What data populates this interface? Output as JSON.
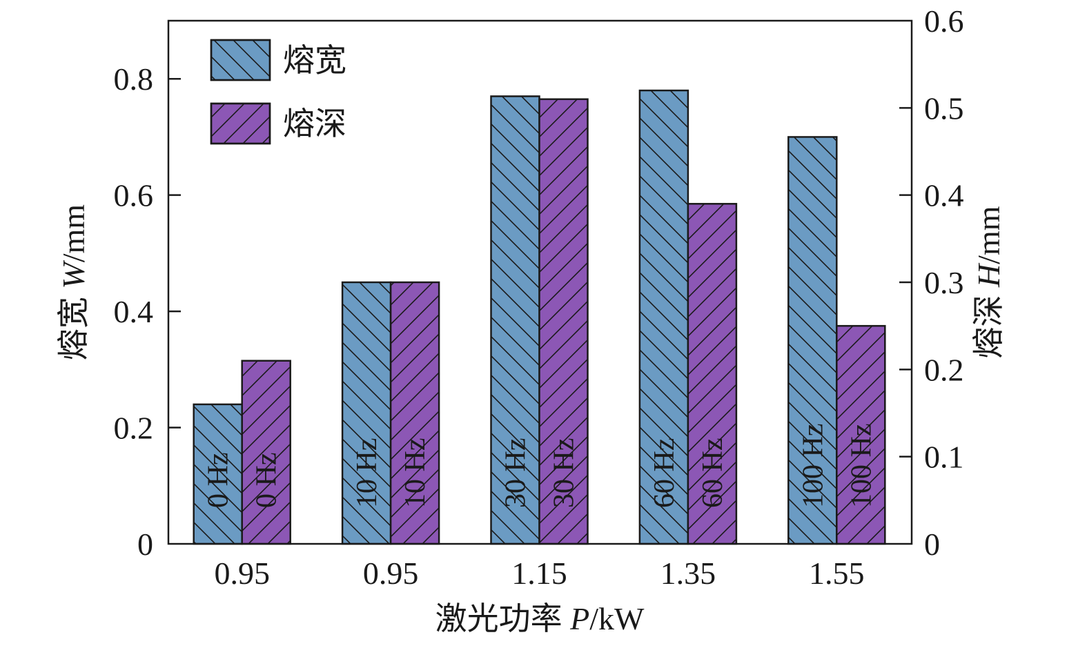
{
  "chart_data": {
    "type": "bar",
    "xlabel_prefix": "激光功率 ",
    "xlabel_var": "P",
    "xlabel_unit": "/kW",
    "ylabel_prefix": "熔宽 ",
    "ylabel_var": "W",
    "ylabel_unit": "/mm",
    "y2label_prefix": "熔深 ",
    "y2label_var": "H",
    "y2label_unit": "/mm",
    "ylim": [
      0,
      0.9
    ],
    "y2lim": [
      0,
      0.6
    ],
    "yticks": [
      "0",
      "0.2",
      "0.4",
      "0.6",
      "0.8"
    ],
    "y2ticks": [
      "0",
      "0.1",
      "0.2",
      "0.3",
      "0.4",
      "0.5",
      "0.6"
    ],
    "categories": [
      "0.95",
      "0.95",
      "1.15",
      "1.35",
      "1.55"
    ],
    "bar_labels": [
      "0 Hz",
      "10 Hz",
      "30 Hz",
      "60 Hz",
      "100 Hz"
    ],
    "series": [
      {
        "name": "熔宽",
        "axis": "left",
        "color": "#6b9bc3",
        "values": [
          0.24,
          0.45,
          0.77,
          0.78,
          0.7
        ]
      },
      {
        "name": "熔深",
        "axis": "right",
        "color": "#8c57b5",
        "values": [
          0.21,
          0.3,
          0.51,
          0.39,
          0.25
        ]
      }
    ],
    "legend_position": "top-left",
    "grid": false
  }
}
